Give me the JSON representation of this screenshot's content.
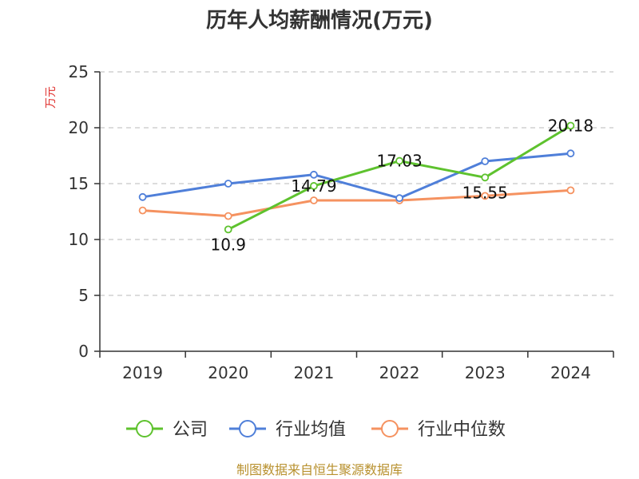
{
  "chart_data": {
    "type": "line",
    "title": "历年人均薪酬情况(万元)",
    "ylabel": "万元",
    "xlabel": "",
    "categories": [
      "2019",
      "2020",
      "2021",
      "2022",
      "2023",
      "2024"
    ],
    "ylim": [
      0,
      25
    ],
    "yticks": [
      0,
      5,
      10,
      15,
      20,
      25
    ],
    "grid": true,
    "legend_position": "bottom",
    "series": [
      {
        "name": "公司",
        "color": "#5ec22e",
        "values": [
          null,
          10.9,
          14.79,
          17.03,
          15.55,
          20.18
        ],
        "labels": [
          null,
          "10.9",
          "14.79",
          "17.03",
          "15.55",
          "20.18"
        ]
      },
      {
        "name": "行业均值",
        "color": "#4f7fd9",
        "values": [
          13.8,
          15.0,
          15.8,
          13.7,
          17.0,
          17.7
        ]
      },
      {
        "name": "行业中位数",
        "color": "#f59260",
        "values": [
          12.6,
          12.1,
          13.5,
          13.5,
          13.9,
          14.4
        ]
      }
    ]
  },
  "footer": {
    "source": "制图数据来自恒生聚源数据库"
  }
}
